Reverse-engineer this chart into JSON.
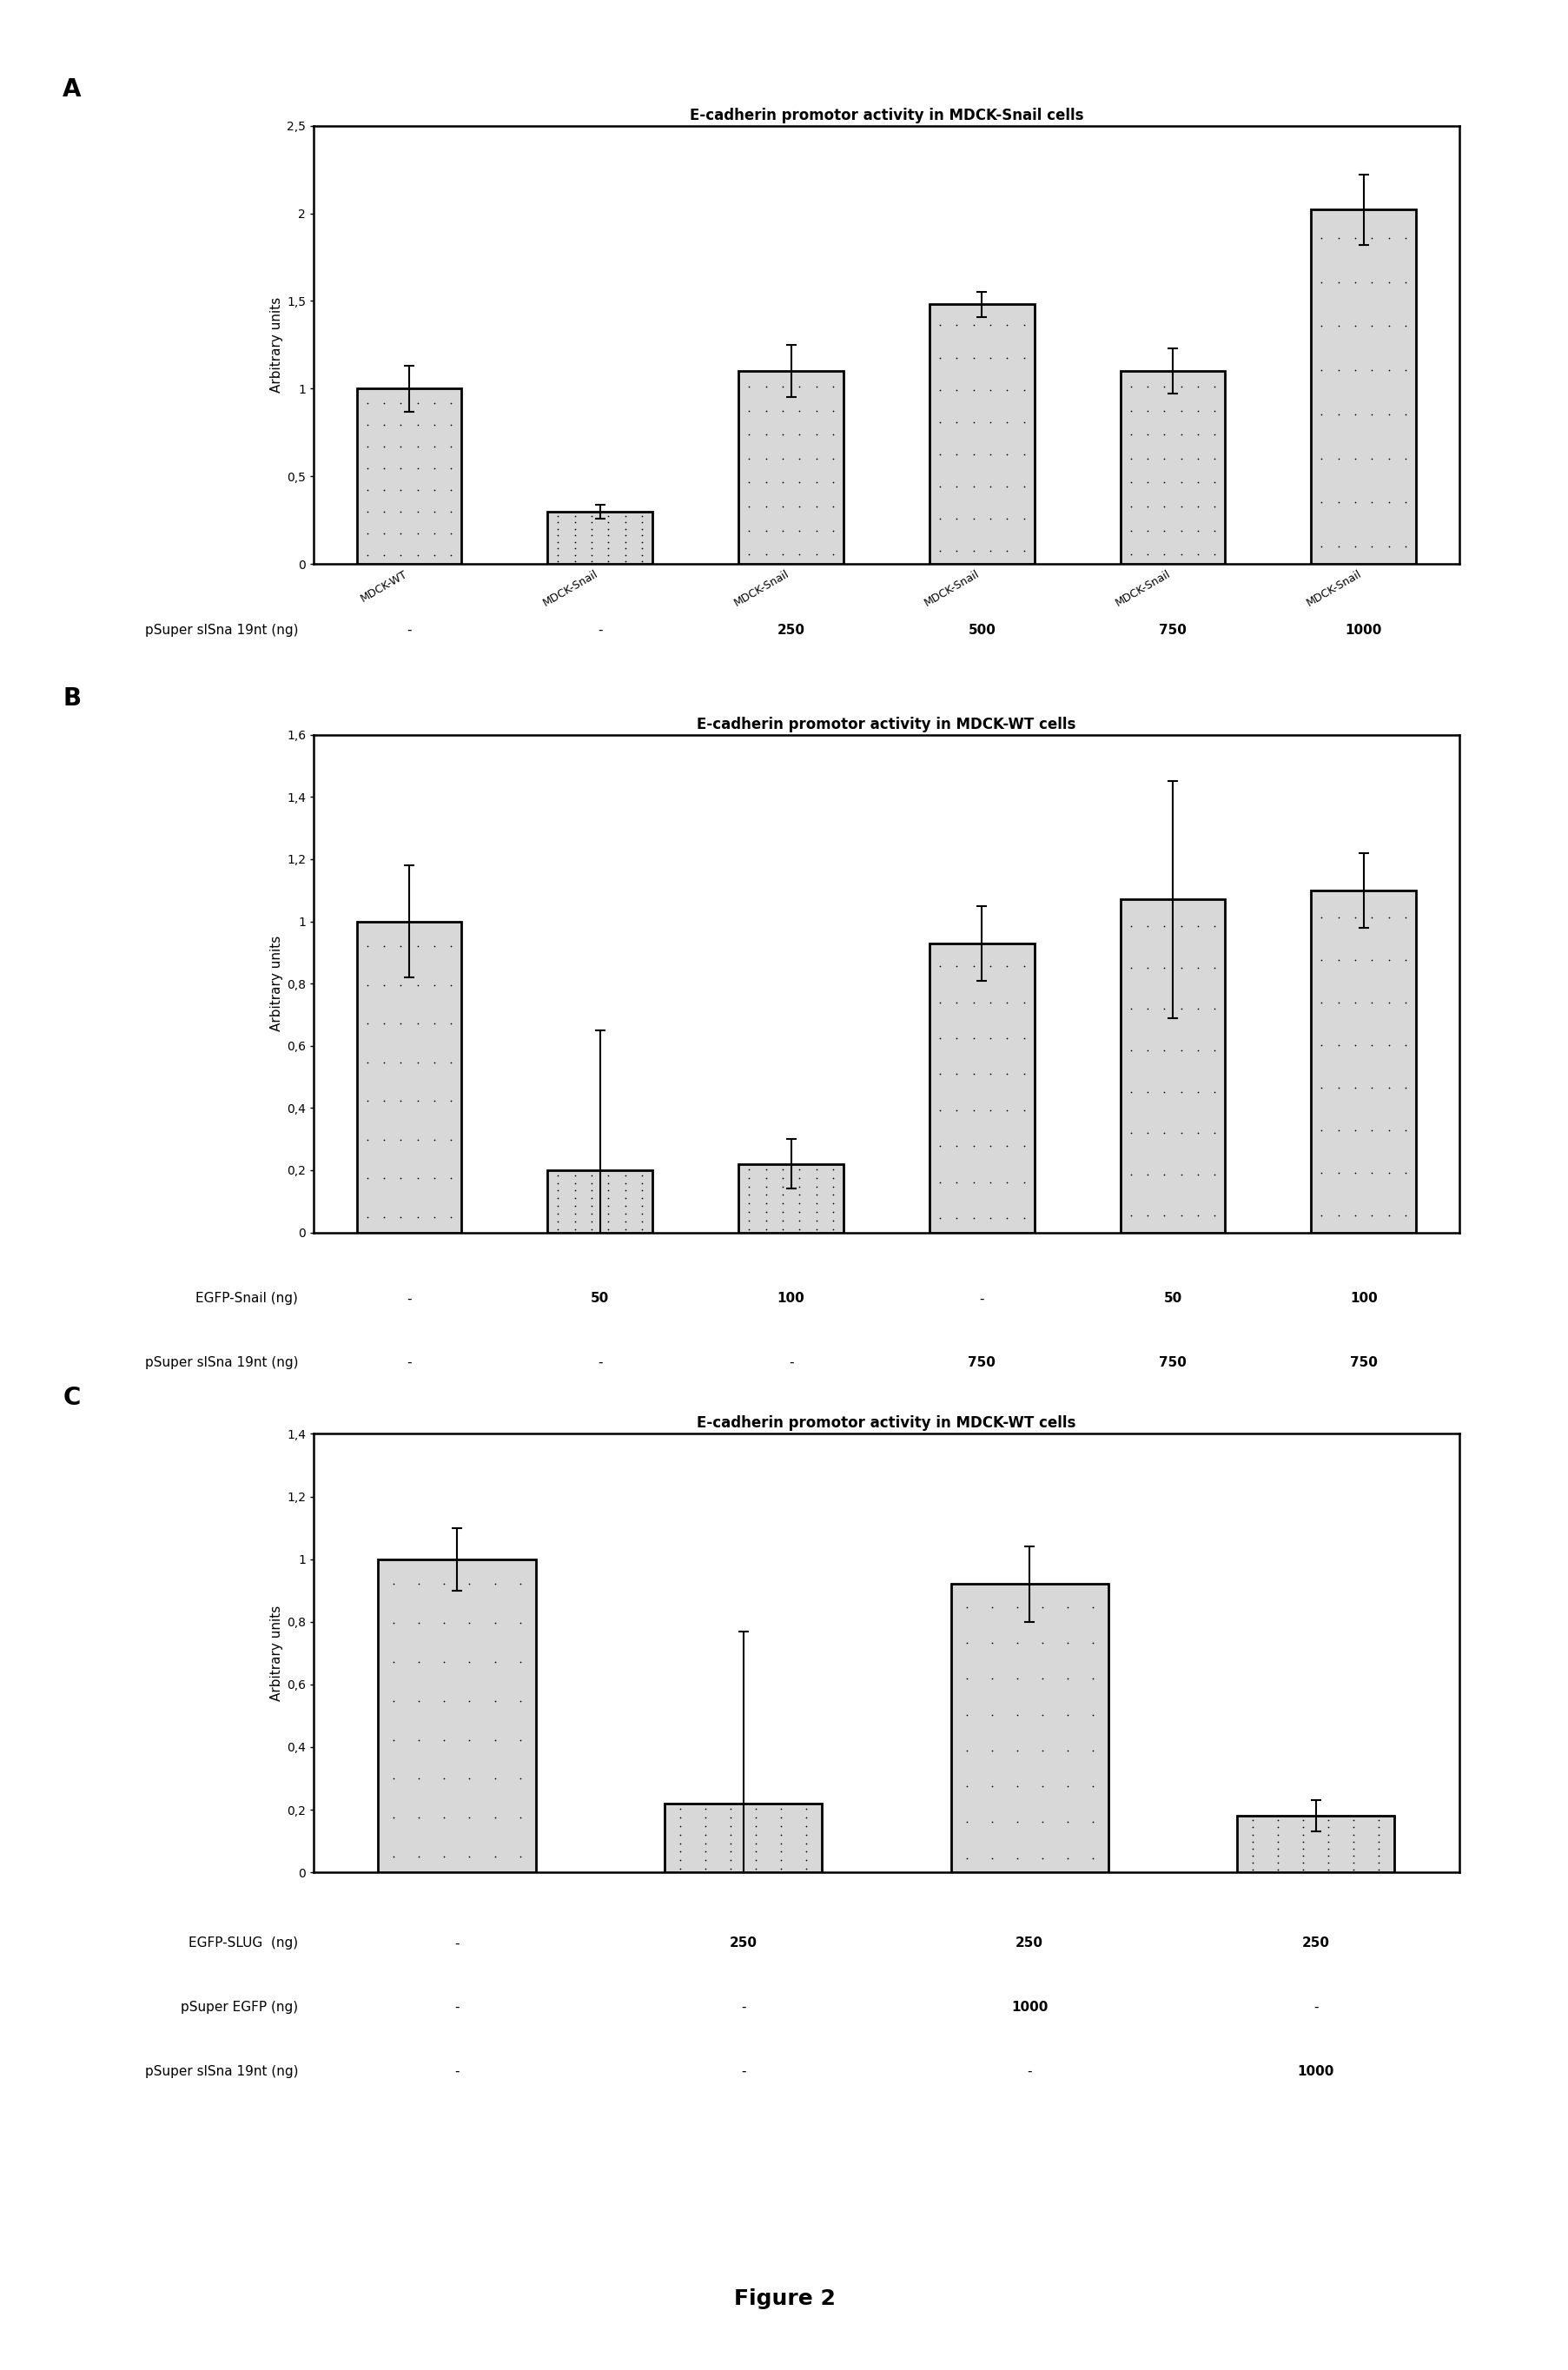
{
  "panel_A": {
    "title": "E-cadherin promotor activity in MDCK-Snail cells",
    "ylabel": "Arbitrary units",
    "ylim": [
      0,
      2.5
    ],
    "yticks": [
      0,
      0.5,
      1.0,
      1.5,
      2.0,
      2.5
    ],
    "ytick_labels": [
      "0",
      "0,5",
      "1",
      "1,5",
      "2",
      "2,5"
    ],
    "bar_values": [
      1.0,
      0.3,
      1.1,
      1.48,
      1.1,
      2.02
    ],
    "bar_errors": [
      0.13,
      0.04,
      0.15,
      0.07,
      0.13,
      0.2
    ],
    "bar_labels": [
      "MDCK-WT",
      "MDCK-Snail",
      "MDCK-Snail",
      "MDCK-Snail",
      "MDCK-Snail",
      "MDCK-Snail"
    ],
    "row1_label": "pSuper slSna 19nt (ng)",
    "row1_values": [
      "-",
      "-",
      "250",
      "500",
      "750",
      "1000"
    ]
  },
  "panel_B": {
    "title": "E-cadherin promotor activity in MDCK-WT cells",
    "ylabel": "Arbitrary units",
    "ylim": [
      0,
      1.6
    ],
    "yticks": [
      0,
      0.2,
      0.4,
      0.6,
      0.8,
      1.0,
      1.2,
      1.4,
      1.6
    ],
    "ytick_labels": [
      "0",
      "0,2",
      "0,4",
      "0,6",
      "0,8",
      "1",
      "1,2",
      "1,4",
      "1,6"
    ],
    "bar_values": [
      1.0,
      0.2,
      0.22,
      0.93,
      1.07,
      1.1
    ],
    "bar_errors": [
      0.18,
      0.45,
      0.08,
      0.12,
      0.38,
      0.12
    ],
    "row1_label": "EGFP-Snail (ng)",
    "row1_values": [
      "-",
      "50",
      "100",
      "-",
      "50",
      "100"
    ],
    "row2_label": "pSuper slSna 19nt (ng)",
    "row2_values": [
      "-",
      "-",
      "-",
      "750",
      "750",
      "750"
    ]
  },
  "panel_C": {
    "title": "E-cadherin promotor activity in MDCK-WT cells",
    "ylabel": "Arbitrary units",
    "ylim": [
      0,
      1.4
    ],
    "yticks": [
      0,
      0.2,
      0.4,
      0.6,
      0.8,
      1.0,
      1.2,
      1.4
    ],
    "ytick_labels": [
      "0",
      "0,2",
      "0,4",
      "0,6",
      "0,8",
      "1",
      "1,2",
      "1,4"
    ],
    "bar_values": [
      1.0,
      0.22,
      0.92,
      0.18
    ],
    "bar_errors": [
      0.1,
      0.55,
      0.12,
      0.05
    ],
    "row1_label": "EGFP-SLUG  (ng)",
    "row1_values": [
      "-",
      "250",
      "250",
      "250"
    ],
    "row2_label": "pSuper EGFP (ng)",
    "row2_values": [
      "-",
      "-",
      "1000",
      "-"
    ],
    "row3_label": "pSuper slSna 19nt (ng)",
    "row3_values": [
      "-",
      "-",
      "-",
      "1000"
    ]
  },
  "figure_label": "Figure 2",
  "bar_color": "#d8d8d8",
  "bar_edgecolor": "#000000",
  "background_color": "#ffffff",
  "title_fontsize": 12,
  "label_fontsize": 11,
  "tick_fontsize": 10,
  "annotation_fontsize": 11,
  "panel_label_fontsize": 20
}
